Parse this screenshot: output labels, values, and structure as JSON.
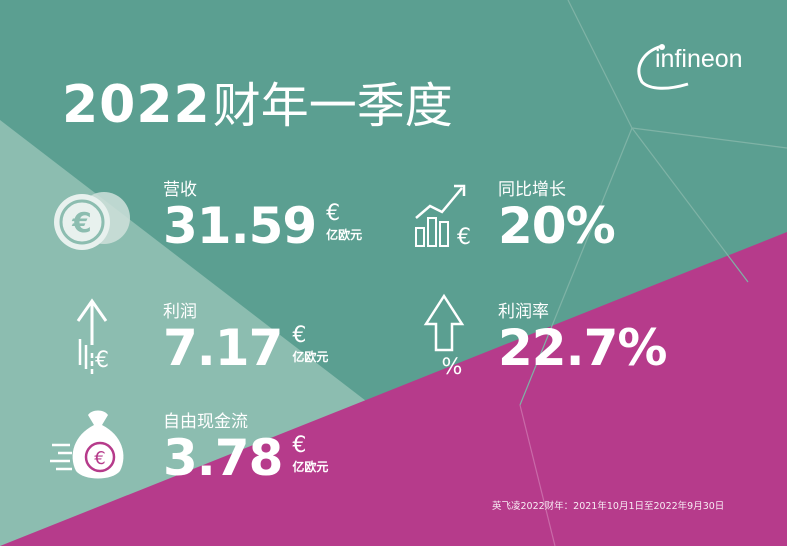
{
  "title": {
    "year": "2022",
    "text": "财年一季度"
  },
  "brand": {
    "name": "infineon"
  },
  "colors": {
    "teal": "#5b9f91",
    "teal_light": "#8cbdb0",
    "magenta": "#b63b8b",
    "white": "#ffffff"
  },
  "metrics": [
    {
      "label": "营收",
      "value": "31.59",
      "currency": "€",
      "unit": "亿欧元",
      "icon": "coins-euro-icon"
    },
    {
      "label": "利润",
      "value": "7.17",
      "currency": "€",
      "unit": "亿欧元",
      "icon": "arrow-up-euro-icon"
    },
    {
      "label": "自由现金流",
      "value": "3.78",
      "currency": "€",
      "unit": "亿欧元",
      "icon": "money-bag-euro-icon"
    },
    {
      "label": "同比增长",
      "value": "20%",
      "icon": "bar-chart-growth-icon"
    },
    {
      "label": "利润率",
      "value": "22.7%",
      "icon": "arrow-up-percent-icon"
    }
  ],
  "footnote": "英飞凌2022财年：2021年10月1日至2022年9月30日"
}
